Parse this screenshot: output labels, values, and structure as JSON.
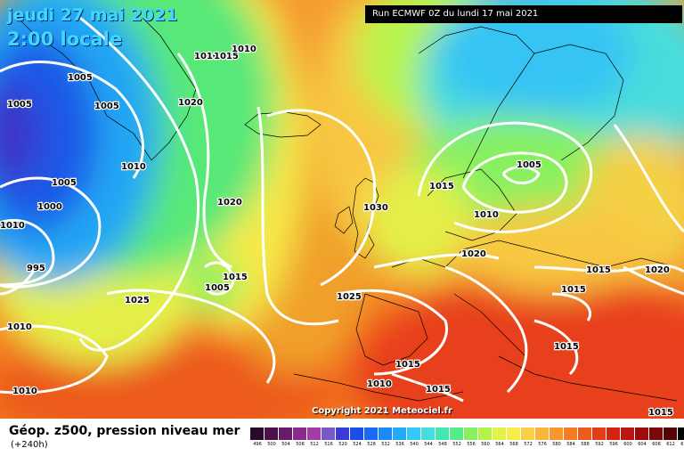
{
  "header": {
    "date": "jeudi 27 mai 2021",
    "local_time": "2:00 locale",
    "run": "Run ECMWF 0Z du lundi 17 mai 2021"
  },
  "copyright": "Copyright 2021 Meteociel.fr",
  "footer": {
    "parameter": "Géop. z500, pression niveau mer",
    "lead_time": "(+240h)"
  },
  "isobar_labels": [
    "1005",
    "1005",
    "1005",
    "1010",
    "1005",
    "1000",
    "995",
    "1010",
    "1020",
    "1010",
    "1015",
    "1010",
    "1020",
    "1015",
    "1025",
    "1005",
    "1015",
    "1025",
    "1030",
    "1015",
    "1005",
    "1010",
    "1020",
    "1015",
    "1015",
    "1020",
    "1015",
    "1015",
    "1010",
    "1015",
    "1010",
    "1010"
  ],
  "colorbar": {
    "ticks": [
      "496",
      "500",
      "504",
      "508",
      "512",
      "516",
      "520",
      "524",
      "528",
      "532",
      "536",
      "540",
      "544",
      "548",
      "552",
      "556",
      "560",
      "564",
      "568",
      "572",
      "576",
      "580",
      "584",
      "588",
      "592",
      "596",
      "600",
      "604",
      "608",
      "612",
      "616"
    ],
    "colors": [
      "#2a0a2a",
      "#4a1248",
      "#6a1a6a",
      "#8a2a8a",
      "#a23ca6",
      "#7a58c8",
      "#3a3ad6",
      "#1a4ee8",
      "#1a6af8",
      "#1a8af8",
      "#22aaf8",
      "#34c8f8",
      "#44dede",
      "#44e6b4",
      "#58ec88",
      "#88f060",
      "#b4f448",
      "#e0f448",
      "#f8ec48",
      "#f8d048",
      "#f8b43c",
      "#f8982c",
      "#f47c24",
      "#ec5c1c",
      "#e43c14",
      "#d42410",
      "#bc1410",
      "#9c0c0c",
      "#7c0808",
      "#540404",
      "#000000"
    ]
  }
}
